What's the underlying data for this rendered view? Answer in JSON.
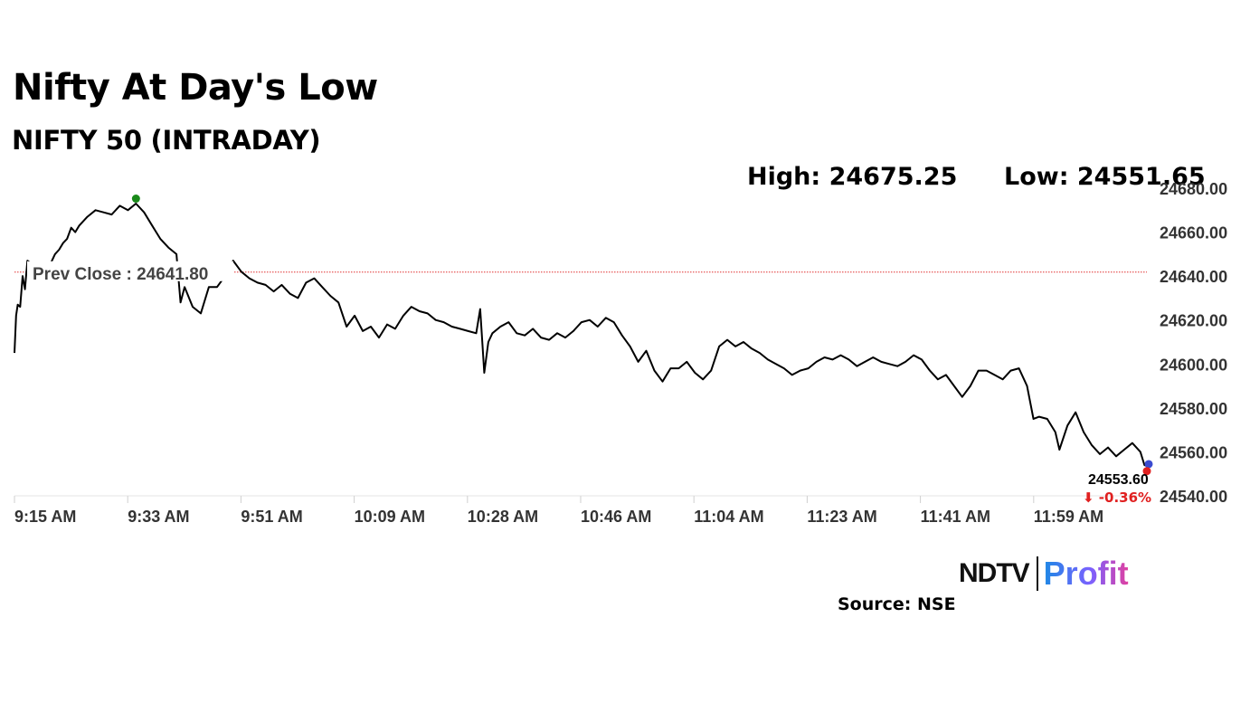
{
  "title": "Nifty At Day's Low",
  "subtitle": "NIFTY 50 (INTRADAY)",
  "high_label": "High: 24675.25",
  "low_label": "Low: 24551.65",
  "source": "Source: NSE",
  "logo": {
    "left": "NDTV",
    "right": "Profit"
  },
  "colors": {
    "line": "#000000",
    "high_marker": "#1a8a1a",
    "low_marker": "#e02020",
    "prev_close": "#e03030",
    "change": "#e02020",
    "logo_profit_start": "#1e88e5",
    "logo_profit_end": "#e040a0"
  },
  "chart_data": {
    "type": "line",
    "title": "NIFTY 50 (INTRADAY)",
    "ylim": [
      24540,
      24680
    ],
    "y_ticks": [
      "24540.00",
      "24560.00",
      "24580.00",
      "24600.00",
      "24620.00",
      "24640.00",
      "24660.00",
      "24680.00"
    ],
    "x_ticks": [
      "9:15 AM",
      "9:33 AM",
      "9:51 AM",
      "10:09 AM",
      "10:28 AM",
      "10:46 AM",
      "11:04 AM",
      "11:23 AM",
      "11:41 AM",
      "11:59 AM"
    ],
    "prev_close": {
      "value": 24641.8,
      "label": "Prev Close : 24641.80"
    },
    "high": 24675.25,
    "low": 24551.65,
    "last": {
      "value": 24553.6,
      "label": "24553.60",
      "change": "⬇ -0.36%"
    },
    "series": [
      {
        "values": [
          [
            0,
            24605
          ],
          [
            0.2,
            24622
          ],
          [
            0.4,
            24627
          ],
          [
            0.7,
            24626
          ],
          [
            1,
            24640
          ],
          [
            1.3,
            24634
          ],
          [
            1.6,
            24647
          ],
          [
            2,
            24646
          ],
          [
            2.5,
            24644
          ],
          [
            3,
            24643
          ],
          [
            3.5,
            24645
          ],
          [
            4,
            24643
          ],
          [
            4.5,
            24646
          ],
          [
            5,
            24650
          ],
          [
            5.5,
            24652
          ],
          [
            6,
            24655
          ],
          [
            6.5,
            24657
          ],
          [
            7,
            24662
          ],
          [
            7.5,
            24660
          ],
          [
            8,
            24663
          ],
          [
            9,
            24667
          ],
          [
            10,
            24670
          ],
          [
            11,
            24669
          ],
          [
            12,
            24668
          ],
          [
            13,
            24672
          ],
          [
            14,
            24670
          ],
          [
            15,
            24673
          ],
          [
            16,
            24669
          ],
          [
            17,
            24663
          ],
          [
            18,
            24657
          ],
          [
            19,
            24653
          ],
          [
            20,
            24650
          ],
          [
            20.5,
            24628
          ],
          [
            21,
            24635
          ],
          [
            22,
            24626
          ],
          [
            23,
            24623
          ],
          [
            24,
            24635
          ],
          [
            25,
            24635
          ],
          [
            26,
            24640
          ],
          [
            27,
            24647
          ],
          [
            28,
            24642
          ],
          [
            29,
            24639
          ],
          [
            30,
            24637
          ],
          [
            31,
            24636
          ],
          [
            32,
            24633
          ],
          [
            33,
            24636
          ],
          [
            34,
            24632
          ],
          [
            35,
            24630
          ],
          [
            36,
            24637
          ],
          [
            37,
            24639
          ],
          [
            38,
            24635
          ],
          [
            39,
            24631
          ],
          [
            40,
            24628
          ],
          [
            41,
            24617
          ],
          [
            42,
            24622
          ],
          [
            43,
            24615
          ],
          [
            44,
            24617
          ],
          [
            45,
            24612
          ],
          [
            46,
            24618
          ],
          [
            47,
            24616
          ],
          [
            48,
            24622
          ],
          [
            49,
            24626
          ],
          [
            50,
            24624
          ],
          [
            51,
            24623
          ],
          [
            52,
            24620
          ],
          [
            53,
            24619
          ],
          [
            54,
            24617
          ],
          [
            55,
            24616
          ],
          [
            56,
            24615
          ],
          [
            57,
            24614
          ],
          [
            57.5,
            24625
          ],
          [
            58,
            24596
          ],
          [
            58.5,
            24610
          ],
          [
            59,
            24614
          ],
          [
            60,
            24617
          ],
          [
            61,
            24619
          ],
          [
            62,
            24614
          ],
          [
            63,
            24613
          ],
          [
            64,
            24616
          ],
          [
            65,
            24612
          ],
          [
            66,
            24611
          ],
          [
            67,
            24614
          ],
          [
            68,
            24612
          ],
          [
            69,
            24615
          ],
          [
            70,
            24619
          ],
          [
            71,
            24620
          ],
          [
            72,
            24617
          ],
          [
            73,
            24621
          ],
          [
            74,
            24619
          ],
          [
            75,
            24613
          ],
          [
            76,
            24608
          ],
          [
            77,
            24601
          ],
          [
            78,
            24606
          ],
          [
            79,
            24597
          ],
          [
            80,
            24592
          ],
          [
            81,
            24598
          ],
          [
            82,
            24598
          ],
          [
            83,
            24601
          ],
          [
            84,
            24596
          ],
          [
            85,
            24593
          ],
          [
            86,
            24597
          ],
          [
            87,
            24608
          ],
          [
            88,
            24611
          ],
          [
            89,
            24608
          ],
          [
            90,
            24610
          ],
          [
            91,
            24607
          ],
          [
            92,
            24605
          ],
          [
            93,
            24602
          ],
          [
            94,
            24600
          ],
          [
            95,
            24598
          ],
          [
            96,
            24595
          ],
          [
            97,
            24597
          ],
          [
            98,
            24598
          ],
          [
            99,
            24601
          ],
          [
            100,
            24603
          ],
          [
            101,
            24602
          ],
          [
            102,
            24604
          ],
          [
            103,
            24602
          ],
          [
            104,
            24599
          ],
          [
            105,
            24601
          ],
          [
            106,
            24603
          ],
          [
            107,
            24601
          ],
          [
            108,
            24600
          ],
          [
            109,
            24599
          ],
          [
            110,
            24601
          ],
          [
            111,
            24604
          ],
          [
            112,
            24602
          ],
          [
            113,
            24597
          ],
          [
            114,
            24593
          ],
          [
            115,
            24595
          ],
          [
            116,
            24590
          ],
          [
            117,
            24585
          ],
          [
            118,
            24590
          ],
          [
            119,
            24597
          ],
          [
            120,
            24597
          ],
          [
            121,
            24595
          ],
          [
            122,
            24593
          ],
          [
            123,
            24597
          ],
          [
            124,
            24598
          ],
          [
            125,
            24590
          ],
          [
            125.8,
            24575
          ],
          [
            126.5,
            24576
          ],
          [
            127.5,
            24575
          ],
          [
            128.5,
            24569
          ],
          [
            129,
            24561
          ],
          [
            130,
            24572
          ],
          [
            131,
            24578
          ],
          [
            132,
            24569
          ],
          [
            133,
            24563
          ],
          [
            134,
            24559
          ],
          [
            135,
            24562
          ],
          [
            136,
            24558
          ],
          [
            137,
            24561
          ],
          [
            138,
            24564
          ],
          [
            139,
            24560
          ],
          [
            139.5,
            24554
          ],
          [
            139.8,
            24553.6
          ]
        ]
      }
    ],
    "x_domain": [
      0,
      139.8
    ]
  }
}
